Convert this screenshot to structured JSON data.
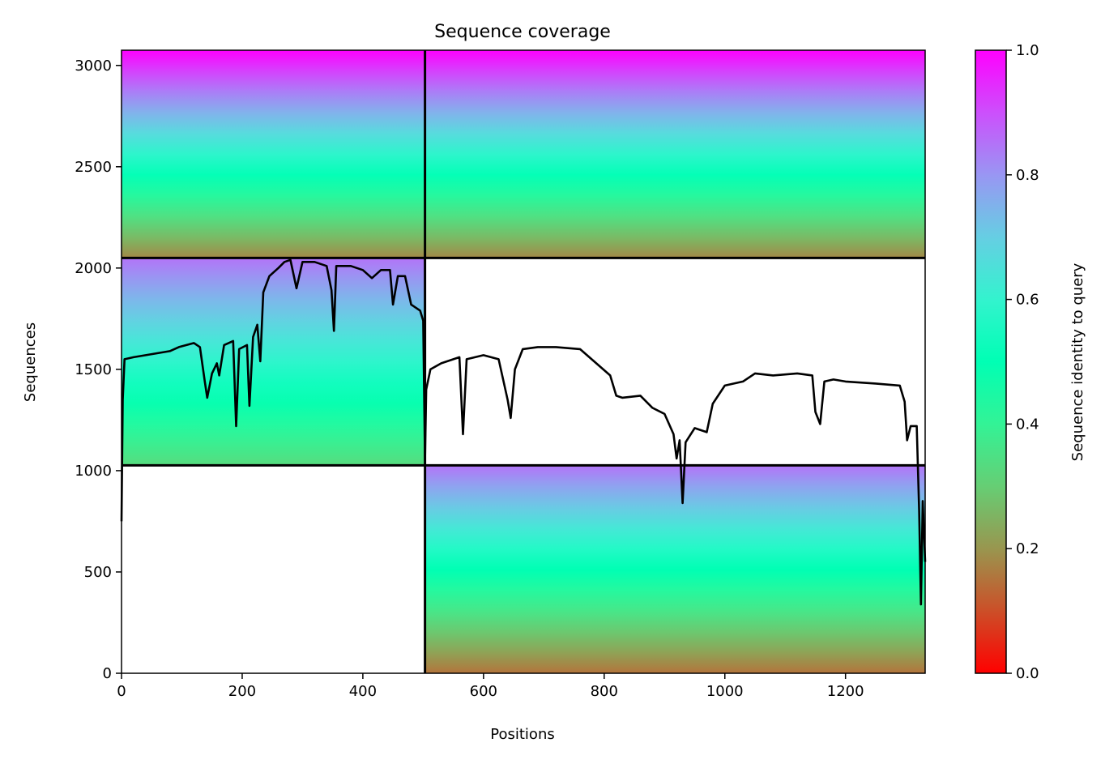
{
  "chart_data": {
    "type": "heatmap",
    "title": "Sequence coverage",
    "xlabel": "Positions",
    "ylabel": "Sequences",
    "colorbar_label": "Sequence identity to query",
    "colormap": "rainbow_r",
    "xlim": [
      0,
      1332
    ],
    "ylim": [
      0,
      3075
    ],
    "x_ticks": [
      0,
      200,
      400,
      600,
      800,
      1000,
      1200
    ],
    "y_ticks": [
      0,
      500,
      1000,
      1500,
      2000,
      2500,
      3000
    ],
    "colorbar_ticks": [
      0.0,
      0.2,
      0.4,
      0.6,
      0.8,
      1.0
    ],
    "colorbar_tick_labels": [
      "0.0",
      "0.2",
      "0.4",
      "0.6",
      "0.8",
      "1.0"
    ],
    "chain_boundaries_x": [
      503
    ],
    "block_boundaries_y": [
      1026,
      2050
    ],
    "blocks": [
      {
        "x": [
          0,
          503
        ],
        "y": [
          2050,
          3075
        ],
        "identity_top": 1.0,
        "identity_bottom": 0.18
      },
      {
        "x": [
          503,
          1332
        ],
        "y": [
          2050,
          3075
        ],
        "identity_top": 1.0,
        "identity_bottom": 0.18
      },
      {
        "x": [
          0,
          503
        ],
        "y": [
          1026,
          2050
        ],
        "identity_top": 0.85,
        "identity_bottom": 0.33
      },
      {
        "x": [
          503,
          1332
        ],
        "y": [
          0,
          1026
        ],
        "identity_top": 0.85,
        "identity_bottom": 0.15
      }
    ],
    "coverage_line": [
      [
        0,
        750
      ],
      [
        2,
        1350
      ],
      [
        5,
        1550
      ],
      [
        20,
        1560
      ],
      [
        40,
        1570
      ],
      [
        80,
        1590
      ],
      [
        95,
        1610
      ],
      [
        120,
        1630
      ],
      [
        130,
        1610
      ],
      [
        138,
        1440
      ],
      [
        142,
        1360
      ],
      [
        150,
        1480
      ],
      [
        158,
        1530
      ],
      [
        162,
        1470
      ],
      [
        170,
        1620
      ],
      [
        185,
        1640
      ],
      [
        190,
        1220
      ],
      [
        195,
        1600
      ],
      [
        208,
        1620
      ],
      [
        212,
        1320
      ],
      [
        218,
        1660
      ],
      [
        225,
        1720
      ],
      [
        230,
        1540
      ],
      [
        235,
        1880
      ],
      [
        245,
        1960
      ],
      [
        260,
        2000
      ],
      [
        270,
        2030
      ],
      [
        280,
        2040
      ],
      [
        290,
        1900
      ],
      [
        300,
        2030
      ],
      [
        320,
        2030
      ],
      [
        340,
        2010
      ],
      [
        348,
        1890
      ],
      [
        352,
        1690
      ],
      [
        356,
        2010
      ],
      [
        380,
        2010
      ],
      [
        400,
        1990
      ],
      [
        415,
        1950
      ],
      [
        430,
        1990
      ],
      [
        445,
        1990
      ],
      [
        450,
        1820
      ],
      [
        458,
        1960
      ],
      [
        470,
        1960
      ],
      [
        480,
        1820
      ],
      [
        495,
        1790
      ],
      [
        500,
        1740
      ],
      [
        503,
        1050
      ],
      [
        505,
        1400
      ],
      [
        512,
        1500
      ],
      [
        530,
        1530
      ],
      [
        560,
        1560
      ],
      [
        566,
        1180
      ],
      [
        572,
        1550
      ],
      [
        600,
        1570
      ],
      [
        625,
        1550
      ],
      [
        640,
        1350
      ],
      [
        645,
        1260
      ],
      [
        652,
        1500
      ],
      [
        665,
        1600
      ],
      [
        690,
        1610
      ],
      [
        720,
        1610
      ],
      [
        760,
        1600
      ],
      [
        810,
        1470
      ],
      [
        820,
        1370
      ],
      [
        830,
        1360
      ],
      [
        860,
        1370
      ],
      [
        880,
        1310
      ],
      [
        900,
        1280
      ],
      [
        915,
        1180
      ],
      [
        920,
        1060
      ],
      [
        925,
        1150
      ],
      [
        930,
        840
      ],
      [
        935,
        1140
      ],
      [
        950,
        1210
      ],
      [
        970,
        1190
      ],
      [
        980,
        1330
      ],
      [
        1000,
        1420
      ],
      [
        1030,
        1440
      ],
      [
        1050,
        1480
      ],
      [
        1080,
        1470
      ],
      [
        1120,
        1480
      ],
      [
        1145,
        1470
      ],
      [
        1150,
        1290
      ],
      [
        1158,
        1230
      ],
      [
        1165,
        1440
      ],
      [
        1180,
        1450
      ],
      [
        1200,
        1440
      ],
      [
        1250,
        1430
      ],
      [
        1290,
        1420
      ],
      [
        1298,
        1340
      ],
      [
        1302,
        1150
      ],
      [
        1308,
        1220
      ],
      [
        1318,
        1220
      ],
      [
        1322,
        800
      ],
      [
        1325,
        340
      ],
      [
        1328,
        850
      ],
      [
        1332,
        550
      ]
    ]
  }
}
